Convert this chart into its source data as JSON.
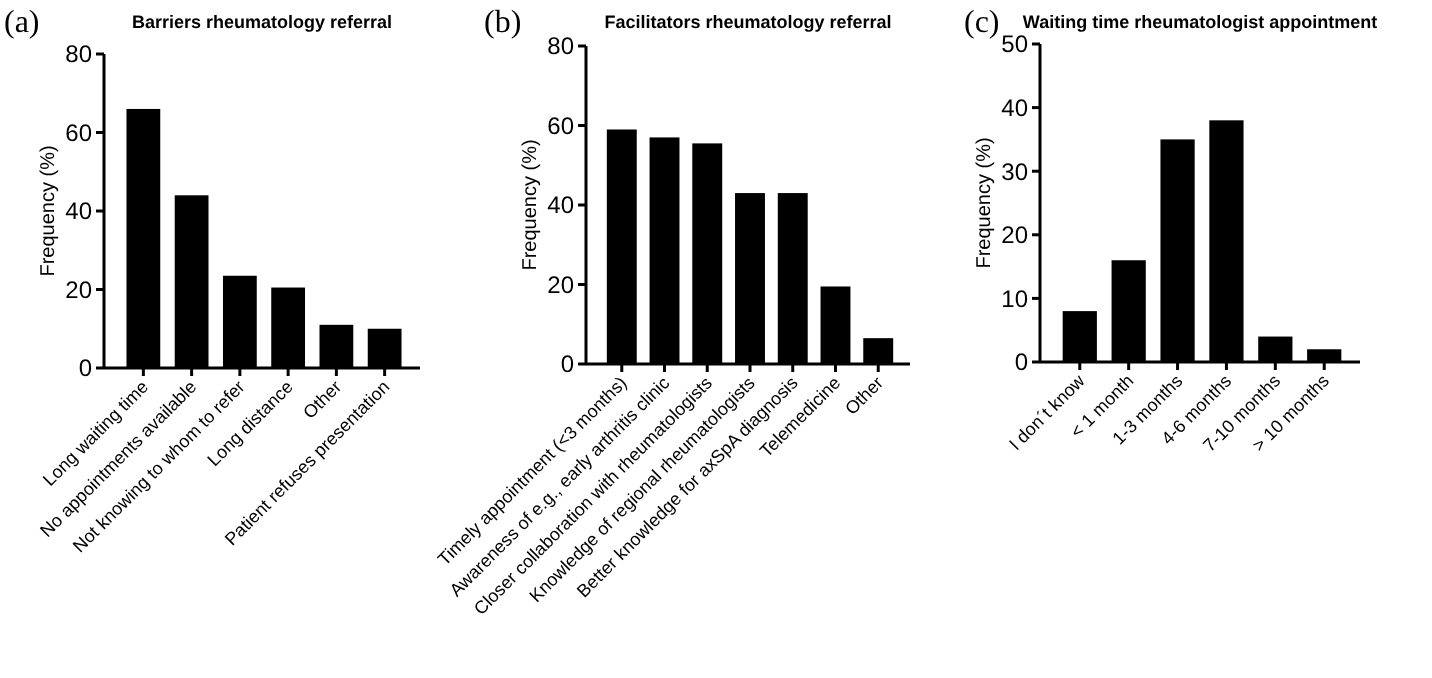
{
  "chart_data": [
    {
      "type": "bar",
      "title": "Barriers rheumatology referral",
      "ylabel": "Frequency (%)",
      "annotations": [
        "(a)"
      ],
      "categories": [
        "Long waiting time",
        "No appointments available",
        "Not knowing to whom to refer",
        "Long distance",
        "Other",
        "Patient refuses presentation"
      ],
      "values": [
        66,
        44,
        23.5,
        20.5,
        11,
        10
      ],
      "color": "#000000",
      "ylim": [
        0,
        80
      ],
      "yticks": [
        0,
        20,
        40,
        60,
        80
      ],
      "grid": false
    },
    {
      "type": "bar",
      "title": "Facilitators rheumatology referral",
      "ylabel": "Frequency (%)",
      "annotations": [
        "(b)"
      ],
      "categories": [
        "Timely appointment (<3 months)",
        "Awareness of e.g., early arthritis clinic",
        "Closer collaboration with rheumatologists",
        "Knowledge of regional rheumatologists",
        "Better knowledge for axSpA diagnosis",
        "Telemedicine",
        "Other"
      ],
      "values": [
        59,
        57,
        55.5,
        43,
        43,
        19.5,
        6.5
      ],
      "color": "#000000",
      "ylim": [
        0,
        80
      ],
      "yticks": [
        0,
        20,
        40,
        60,
        80
      ],
      "grid": false
    },
    {
      "type": "bar",
      "title": "Waiting time rheumatologist appointment",
      "ylabel": "Frequency (%)",
      "annotations": [
        "(c)"
      ],
      "categories": [
        "I don´t know",
        "< 1 month",
        "1-3 months",
        "4-6 months",
        "7-10 months",
        "> 10 months"
      ],
      "values": [
        8,
        16,
        35,
        38,
        4,
        2
      ],
      "color": "#000000",
      "ylim": [
        0,
        50
      ],
      "yticks": [
        0,
        10,
        20,
        30,
        40,
        50
      ],
      "grid": false
    }
  ]
}
